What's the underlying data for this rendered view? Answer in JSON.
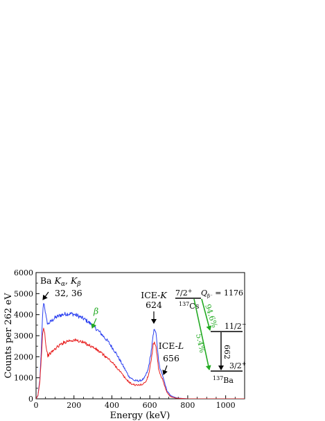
{
  "chart_data": {
    "type": "line",
    "title": "",
    "xlabel": "Energy (keV)",
    "ylabel": "Counts per 262 eV",
    "xlim": [
      0,
      1100
    ],
    "ylim": [
      0,
      6000
    ],
    "x_ticks": [
      "0",
      "200",
      "400",
      "600",
      "800",
      "1000"
    ],
    "y_ticks": [
      "0",
      "1000",
      "2000",
      "3000",
      "4000",
      "5000",
      "6000"
    ],
    "grid": false,
    "series": [
      {
        "color": "#2a3ff0",
        "points": [
          [
            0,
            0
          ],
          [
            10,
            150
          ],
          [
            20,
            900
          ],
          [
            28,
            2300
          ],
          [
            34,
            3900
          ],
          [
            40,
            4600
          ],
          [
            46,
            4350
          ],
          [
            54,
            3800
          ],
          [
            62,
            3550
          ],
          [
            75,
            3650
          ],
          [
            100,
            3850
          ],
          [
            130,
            3980
          ],
          [
            160,
            4040
          ],
          [
            190,
            4040
          ],
          [
            220,
            3950
          ],
          [
            260,
            3760
          ],
          [
            300,
            3480
          ],
          [
            340,
            3130
          ],
          [
            380,
            2720
          ],
          [
            420,
            2200
          ],
          [
            460,
            1550
          ],
          [
            490,
            1060
          ],
          [
            520,
            860
          ],
          [
            550,
            860
          ],
          [
            570,
            960
          ],
          [
            590,
            1350
          ],
          [
            605,
            2100
          ],
          [
            615,
            2800
          ],
          [
            624,
            3360
          ],
          [
            630,
            3250
          ],
          [
            638,
            2650
          ],
          [
            646,
            1800
          ],
          [
            656,
            1350
          ],
          [
            666,
            1200
          ],
          [
            676,
            850
          ],
          [
            690,
            400
          ],
          [
            710,
            150
          ],
          [
            740,
            40
          ],
          [
            800,
            0
          ],
          [
            1100,
            0
          ]
        ]
      },
      {
        "color": "#e82020",
        "points": [
          [
            0,
            0
          ],
          [
            10,
            150
          ],
          [
            20,
            800
          ],
          [
            28,
            2000
          ],
          [
            34,
            3000
          ],
          [
            40,
            3450
          ],
          [
            46,
            3100
          ],
          [
            54,
            2400
          ],
          [
            62,
            2050
          ],
          [
            80,
            2200
          ],
          [
            110,
            2450
          ],
          [
            140,
            2650
          ],
          [
            170,
            2760
          ],
          [
            200,
            2790
          ],
          [
            230,
            2740
          ],
          [
            270,
            2600
          ],
          [
            310,
            2400
          ],
          [
            350,
            2130
          ],
          [
            390,
            1830
          ],
          [
            430,
            1450
          ],
          [
            470,
            980
          ],
          [
            500,
            720
          ],
          [
            530,
            640
          ],
          [
            560,
            680
          ],
          [
            580,
            820
          ],
          [
            595,
            1200
          ],
          [
            608,
            1900
          ],
          [
            618,
            2550
          ],
          [
            624,
            2730
          ],
          [
            630,
            2600
          ],
          [
            638,
            2050
          ],
          [
            646,
            1400
          ],
          [
            656,
            1100
          ],
          [
            666,
            950
          ],
          [
            676,
            650
          ],
          [
            690,
            300
          ],
          [
            710,
            100
          ],
          [
            740,
            30
          ],
          [
            800,
            0
          ],
          [
            1100,
            0
          ]
        ]
      }
    ],
    "annotations": {
      "bak_prefix": "Ba ",
      "bak_ka": "K",
      "bak_ka_sub": "α",
      "bak_sep": ", ",
      "bak_kb": "K",
      "bak_kb_sub": "β",
      "bak_energy": "32, 36",
      "beta": "β",
      "icek_label": "ICE-",
      "icek_shell": "K",
      "icek_energy": "624",
      "icel_label": "ICE-",
      "icel_shell": "L",
      "icel_energy": "656"
    },
    "decay_scheme": {
      "cs_spin": "7/2",
      "cs_parity": "+",
      "cs_mass": "137",
      "cs_element": "Cs",
      "q_label": "Q",
      "q_sub": "β⁻",
      "q_value": " = 1176",
      "mid_spin": "11/2",
      "mid_parity": "−",
      "gs_spin": "3/2",
      "gs_parity": "+",
      "ba_mass": "137",
      "ba_element": "Ba",
      "branch_major": "94.6%",
      "branch_minor": "5.4%",
      "transition": "662",
      "green": "#22aa22"
    }
  }
}
